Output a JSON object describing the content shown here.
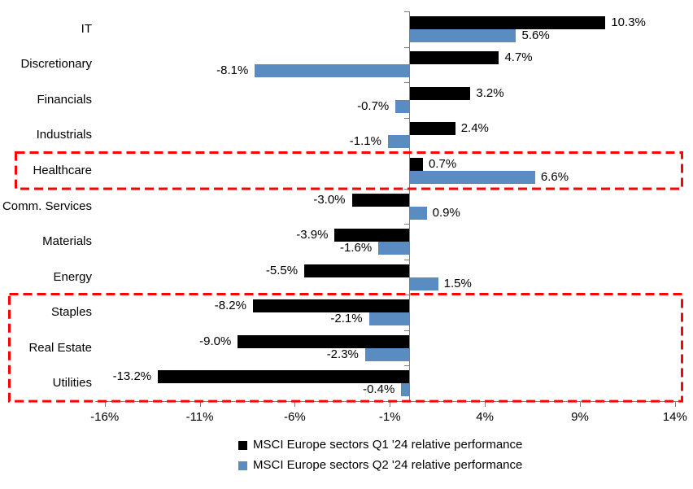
{
  "chart_data": {
    "type": "bar",
    "orientation": "horizontal",
    "title": "",
    "categories": [
      "IT",
      "Discretionary",
      "Financials",
      "Industrials",
      "Healthcare",
      "Comm. Services",
      "Materials",
      "Energy",
      "Staples",
      "Real Estate",
      "Utilities"
    ],
    "series": [
      {
        "name": "MSCI Europe sectors Q1 '24 relative performance",
        "color": "#000000",
        "values": [
          10.3,
          4.7,
          3.2,
          2.4,
          0.7,
          -3.0,
          -3.9,
          -5.5,
          -8.2,
          -9.0,
          -13.2
        ],
        "labels": [
          "10.3%",
          "4.7%",
          "3.2%",
          "2.4%",
          "0.7%",
          "-3.0%",
          "-3.9%",
          "-5.5%",
          "-8.2%",
          "-9.0%",
          "-13.2%"
        ]
      },
      {
        "name": "MSCI Europe sectors Q2 '24 relative performance",
        "color": "#5A8CC1",
        "values": [
          5.6,
          -8.1,
          -0.7,
          -1.1,
          6.6,
          0.9,
          -1.6,
          1.5,
          -2.1,
          -2.3,
          -0.4
        ],
        "labels": [
          "5.6%",
          "-8.1%",
          "-0.7%",
          "-1.1%",
          "6.6%",
          "0.9%",
          "-1.6%",
          "1.5%",
          "-2.1%",
          "-2.3%",
          "-0.4%"
        ]
      }
    ],
    "x_ticks": [
      {
        "value": -16,
        "label": "-16%"
      },
      {
        "value": -11,
        "label": "-11%"
      },
      {
        "value": -6,
        "label": "-6%"
      },
      {
        "value": -1,
        "label": "-1%"
      },
      {
        "value": 4,
        "label": "4%"
      },
      {
        "value": 9,
        "label": "9%"
      },
      {
        "value": 14,
        "label": "14%"
      }
    ],
    "xlim": [
      -16.5,
      14.35
    ],
    "grid": false,
    "axis_color": "#7F7F7F",
    "value_label_color": "#000000",
    "legend_position": "bottom",
    "highlight_boxes": [
      {
        "from": "Healthcare",
        "to": "Healthcare",
        "color": "#FF0000"
      },
      {
        "from": "Staples",
        "to": "Utilities",
        "color": "#FF0000"
      }
    ]
  }
}
